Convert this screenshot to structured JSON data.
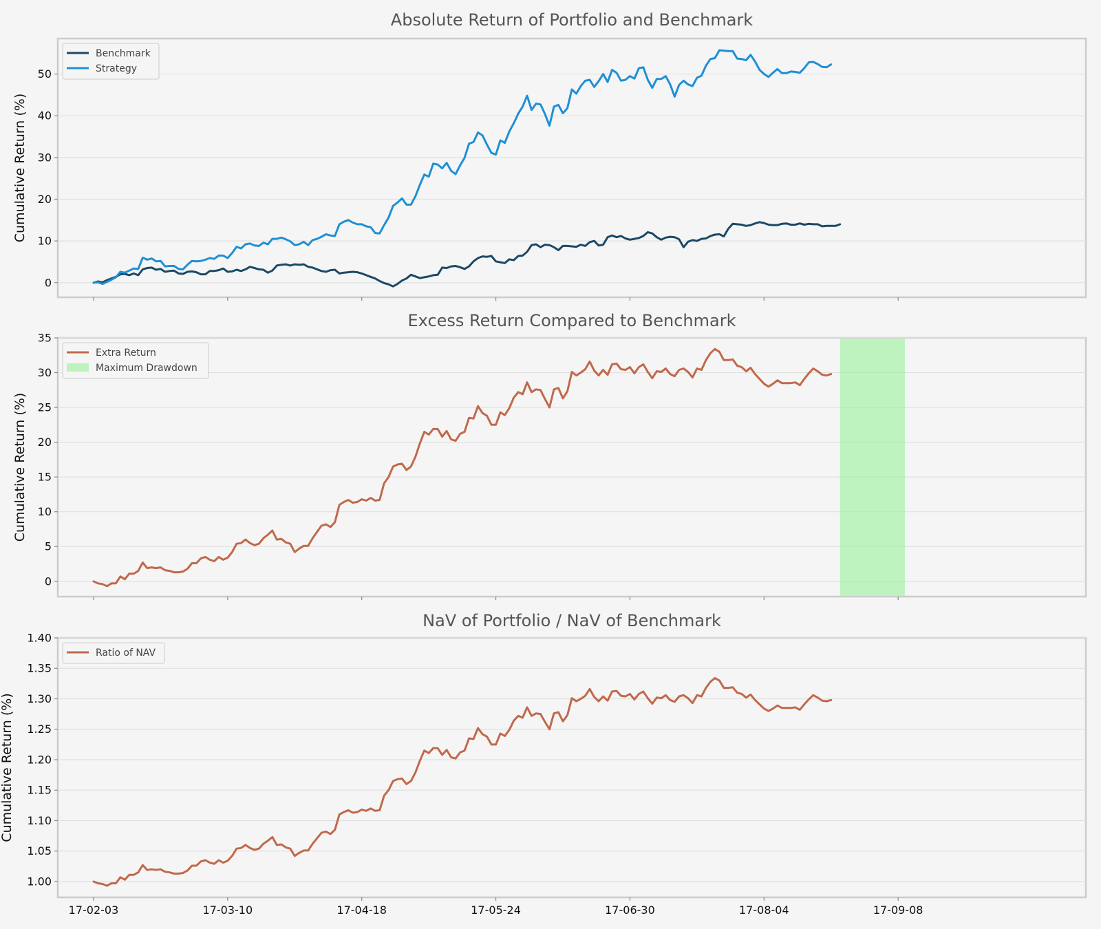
{
  "chart_data": [
    {
      "type": "line",
      "title": "Absolute Return of Portfolio and Benchmark",
      "ylabel": "Cumulative Return (%)",
      "ylim": [
        -3.5,
        58.5
      ],
      "yticks": [
        "0",
        "10",
        "20",
        "30",
        "40",
        "50"
      ],
      "xlim": [
        -8,
        222
      ],
      "legend_position": "top-left",
      "series": [
        {
          "name": "Benchmark",
          "color": "#1b4965",
          "values": [
            0,
            0.3,
            0.1,
            0.6,
            1.0,
            1.4,
            2.0,
            2.1,
            1.8,
            2.2,
            1.8,
            3.2,
            3.5,
            3.6,
            3.1,
            3.3,
            2.6,
            2.8,
            2.9,
            2.2,
            2.1,
            2.6,
            2.7,
            2.5,
            2.0,
            2.0,
            2.8,
            2.8,
            3.0,
            3.4,
            2.6,
            2.7,
            3.1,
            2.8,
            3.2,
            3.8,
            3.5,
            3.2,
            3.1,
            2.4,
            2.9,
            4.1,
            4.3,
            4.4,
            4.1,
            4.4,
            4.3,
            4.4,
            3.8,
            3.6,
            3.2,
            2.8,
            2.6,
            3.0,
            3.1,
            2.2,
            2.4,
            2.5,
            2.6,
            2.5,
            2.2,
            1.8,
            1.4,
            1.0,
            0.4,
            -0.1,
            -0.4,
            -0.9,
            -0.3,
            0.5,
            1.0,
            1.9,
            1.5,
            1.1,
            1.3,
            1.5,
            1.8,
            1.9,
            3.6,
            3.5,
            3.9,
            4.0,
            3.7,
            3.3,
            3.9,
            5.1,
            5.9,
            6.3,
            6.2,
            6.4,
            5.1,
            4.9,
            4.7,
            5.6,
            5.4,
            6.4,
            6.5,
            7.4,
            9.0,
            9.2,
            8.5,
            9.1,
            9.0,
            8.5,
            7.8,
            8.8,
            8.8,
            8.7,
            8.6,
            9.1,
            8.8,
            9.7,
            10.0,
            8.9,
            9.1,
            10.9,
            11.3,
            10.9,
            11.2,
            10.6,
            10.3,
            10.5,
            10.7,
            11.2,
            12.1,
            11.8,
            10.9,
            10.3,
            10.8,
            11.0,
            10.9,
            10.4,
            8.5,
            9.8,
            10.2,
            10.0,
            10.5,
            10.6,
            11.2,
            11.5,
            11.6,
            11.1,
            12.9,
            14.1,
            14.0,
            13.9,
            13.6,
            13.8,
            14.2,
            14.5,
            14.3,
            13.9,
            13.8,
            13.8,
            14.1,
            14.2,
            13.9,
            13.9,
            14.2,
            13.9,
            14.1,
            14.0,
            14.0,
            13.5,
            13.6,
            13.6,
            13.6,
            14.0
          ]
        },
        {
          "name": "Strategy",
          "color": "#1f8fd4",
          "values": [
            0,
            0.1,
            -0.3,
            0.2,
            0.7,
            1.3,
            2.6,
            2.4,
            2.9,
            3.4,
            3.3,
            6.0,
            5.5,
            5.8,
            5.1,
            5.2,
            3.9,
            4.0,
            4.0,
            3.3,
            3.2,
            4.3,
            5.2,
            5.1,
            5.2,
            5.5,
            5.9,
            5.7,
            6.5,
            6.5,
            5.9,
            7.1,
            8.6,
            8.2,
            9.2,
            9.4,
            8.9,
            8.8,
            9.6,
            9.2,
            10.5,
            10.5,
            10.8,
            10.4,
            9.9,
            9.0,
            9.2,
            9.8,
            9.0,
            10.2,
            10.5,
            11.0,
            11.6,
            11.3,
            11.2,
            14.0,
            14.6,
            15.0,
            14.4,
            14.0,
            14.0,
            13.5,
            13.3,
            11.9,
            11.8,
            13.8,
            15.6,
            18.4,
            19.2,
            20.2,
            18.7,
            18.7,
            20.7,
            23.4,
            25.9,
            25.4,
            28.5,
            28.3,
            27.4,
            28.7,
            26.8,
            26.0,
            28.1,
            29.9,
            33.3,
            33.7,
            36.0,
            35.3,
            33.1,
            31.1,
            30.7,
            34.1,
            33.5,
            36.2,
            38.2,
            40.5,
            42.2,
            44.8,
            41.4,
            42.9,
            42.7,
            40.4,
            37.6,
            42.2,
            42.6,
            40.6,
            41.8,
            46.3,
            45.3,
            47.1,
            48.4,
            48.6,
            46.9,
            48.3,
            50.0,
            48.1,
            51.0,
            50.3,
            48.4,
            48.6,
            49.5,
            48.9,
            51.4,
            51.6,
            48.6,
            46.7,
            48.8,
            48.8,
            49.5,
            47.5,
            44.6,
            47.4,
            48.4,
            47.5,
            47.1,
            49.1,
            49.6,
            52.0,
            53.6,
            53.8,
            55.7,
            55.6,
            55.5,
            55.5,
            53.7,
            53.6,
            53.3,
            54.6,
            53.0,
            51.0,
            50.0,
            49.3,
            50.3,
            51.2,
            50.2,
            50.2,
            50.6,
            50.5,
            50.3,
            51.4,
            52.8,
            52.9,
            52.4,
            51.7,
            51.6,
            52.3
          ]
        }
      ]
    },
    {
      "type": "line",
      "title": "Excess Return Compared to Benchmark",
      "ylabel": "Cumulative Return (%)",
      "ylim": [
        -2.2,
        35
      ],
      "yticks": [
        "0",
        "5",
        "10",
        "15",
        "20",
        "25",
        "30",
        "35"
      ],
      "xlim": [
        -8,
        222
      ],
      "legend_position": "top-left",
      "series": [
        {
          "name": "Extra Return",
          "color": "#c0694b",
          "values": [
            0,
            -0.3,
            -0.4,
            -0.7,
            -0.3,
            -0.3,
            0.7,
            0.3,
            1.1,
            1.1,
            1.5,
            2.7,
            1.9,
            2.0,
            1.9,
            2.0,
            1.6,
            1.5,
            1.3,
            1.3,
            1.4,
            1.8,
            2.6,
            2.6,
            3.3,
            3.5,
            3.1,
            2.9,
            3.5,
            3.1,
            3.4,
            4.2,
            5.4,
            5.5,
            6.0,
            5.5,
            5.2,
            5.4,
            6.2,
            6.7,
            7.3,
            6.0,
            6.1,
            5.6,
            5.4,
            4.2,
            4.7,
            5.1,
            5.1,
            6.2,
            7.1,
            8.0,
            8.2,
            7.8,
            8.5,
            11.0,
            11.4,
            11.7,
            11.3,
            11.4,
            11.8,
            11.6,
            12.0,
            11.6,
            11.7,
            14.1,
            15.0,
            16.5,
            16.8,
            16.9,
            16.0,
            16.5,
            17.9,
            19.8,
            21.5,
            21.1,
            21.9,
            21.9,
            20.8,
            21.6,
            20.4,
            20.2,
            21.2,
            21.5,
            23.5,
            23.4,
            25.2,
            24.2,
            23.8,
            22.5,
            22.5,
            24.3,
            23.9,
            24.9,
            26.4,
            27.2,
            26.9,
            28.6,
            27.2,
            27.6,
            27.5,
            26.2,
            25.0,
            27.6,
            27.8,
            26.3,
            27.3,
            30.1,
            29.6,
            30.0,
            30.5,
            31.6,
            30.3,
            29.6,
            30.4,
            29.7,
            31.2,
            31.3,
            30.5,
            30.4,
            30.8,
            29.9,
            30.8,
            31.2,
            30.1,
            29.2,
            30.2,
            30.1,
            30.6,
            29.8,
            29.5,
            30.4,
            30.6,
            30.1,
            29.3,
            30.6,
            30.4,
            31.8,
            32.8,
            33.4,
            33.0,
            31.8,
            31.8,
            31.9,
            31.0,
            30.8,
            30.2,
            30.7,
            29.8,
            29.1,
            28.4,
            28.0,
            28.4,
            28.9,
            28.5,
            28.5,
            28.5,
            28.6,
            28.2,
            29.1,
            29.9,
            30.6,
            30.2,
            29.7,
            29.6,
            29.8
          ]
        }
      ],
      "drawdown_shade": {
        "label": "Maximum Drawdown",
        "color": "#90ee90",
        "x_start": 167,
        "x_end": 181.5
      }
    },
    {
      "type": "line",
      "title": "NaV of Portfolio / NaV of Benchmark",
      "ylabel": "Cumulative Return (%)",
      "ylim": [
        0.974,
        1.4
      ],
      "yticks": [
        "1.00",
        "1.05",
        "1.10",
        "1.15",
        "1.20",
        "1.25",
        "1.30",
        "1.35",
        "1.40"
      ],
      "xlim": [
        -8,
        222
      ],
      "xticks": [
        {
          "x": 0,
          "label": "17-02-03"
        },
        {
          "x": 30,
          "label": "17-03-10"
        },
        {
          "x": 60,
          "label": "17-04-18"
        },
        {
          "x": 90,
          "label": "17-05-24"
        },
        {
          "x": 120,
          "label": "17-06-30"
        },
        {
          "x": 150,
          "label": "17-08-04"
        },
        {
          "x": 180,
          "label": "17-09-08"
        }
      ],
      "legend_position": "top-left",
      "series": [
        {
          "name": "Ratio of NAV",
          "color": "#c0694b",
          "values": [
            1.0,
            0.997,
            0.996,
            0.993,
            0.997,
            0.997,
            1.007,
            1.003,
            1.011,
            1.011,
            1.015,
            1.027,
            1.019,
            1.02,
            1.019,
            1.02,
            1.016,
            1.015,
            1.013,
            1.013,
            1.014,
            1.018,
            1.026,
            1.026,
            1.033,
            1.035,
            1.031,
            1.029,
            1.035,
            1.031,
            1.034,
            1.042,
            1.054,
            1.055,
            1.06,
            1.055,
            1.052,
            1.054,
            1.062,
            1.067,
            1.073,
            1.06,
            1.061,
            1.056,
            1.054,
            1.042,
            1.047,
            1.051,
            1.051,
            1.062,
            1.071,
            1.08,
            1.082,
            1.078,
            1.085,
            1.11,
            1.114,
            1.117,
            1.113,
            1.114,
            1.118,
            1.116,
            1.12,
            1.116,
            1.117,
            1.141,
            1.15,
            1.165,
            1.168,
            1.169,
            1.16,
            1.165,
            1.179,
            1.198,
            1.215,
            1.211,
            1.219,
            1.219,
            1.208,
            1.216,
            1.204,
            1.202,
            1.212,
            1.215,
            1.235,
            1.234,
            1.252,
            1.242,
            1.238,
            1.225,
            1.225,
            1.243,
            1.239,
            1.249,
            1.264,
            1.272,
            1.269,
            1.286,
            1.272,
            1.276,
            1.275,
            1.262,
            1.25,
            1.276,
            1.278,
            1.263,
            1.273,
            1.301,
            1.296,
            1.3,
            1.305,
            1.316,
            1.303,
            1.296,
            1.304,
            1.297,
            1.312,
            1.313,
            1.305,
            1.304,
            1.308,
            1.299,
            1.308,
            1.312,
            1.301,
            1.292,
            1.302,
            1.301,
            1.306,
            1.298,
            1.295,
            1.304,
            1.306,
            1.301,
            1.293,
            1.306,
            1.304,
            1.318,
            1.328,
            1.334,
            1.33,
            1.318,
            1.318,
            1.319,
            1.31,
            1.308,
            1.302,
            1.307,
            1.298,
            1.291,
            1.284,
            1.28,
            1.284,
            1.289,
            1.285,
            1.285,
            1.285,
            1.286,
            1.282,
            1.291,
            1.299,
            1.306,
            1.302,
            1.297,
            1.296,
            1.298
          ]
        }
      ]
    }
  ]
}
